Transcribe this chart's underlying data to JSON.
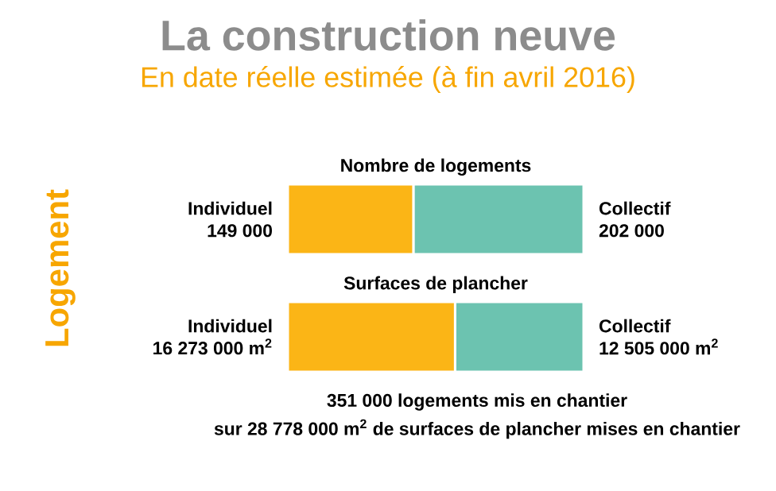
{
  "chart_data": [
    {
      "type": "bar",
      "orientation": "horizontal",
      "stacked": true,
      "title": "La construction neuve",
      "subtitle": "En date réelle estimée (à fin avril 2016)",
      "categories": [
        "Nombre de logements"
      ],
      "xlim": [
        0,
        351000
      ],
      "series": [
        {
          "name": "Individuel",
          "color": "#fbb516",
          "values": [
            149000
          ],
          "value_labels": [
            "149 000"
          ]
        },
        {
          "name": "Collectif",
          "color": "#6cc3b0",
          "values": [
            202000
          ],
          "value_labels": [
            "202 000"
          ]
        }
      ],
      "annotations": [
        "Logement"
      ]
    },
    {
      "type": "bar",
      "orientation": "horizontal",
      "stacked": true,
      "categories": [
        "Surfaces de plancher"
      ],
      "xlim": [
        0,
        28778000
      ],
      "series": [
        {
          "name": "Individuel",
          "color": "#fbb516",
          "values": [
            16273000
          ],
          "value_labels": [
            "16 273 000 m$^{2}$"
          ]
        },
        {
          "name": "Collectif",
          "color": "#6cc3b0",
          "values": [
            12505000
          ],
          "value_labels": [
            "12 505 000 m$^{2}$"
          ]
        }
      ],
      "annotations": [
        "351 000 logements mis en chantier",
        "sur 28 778 000 m$^{2}$ de surfaces de plancher mises en chantier"
      ]
    }
  ]
}
